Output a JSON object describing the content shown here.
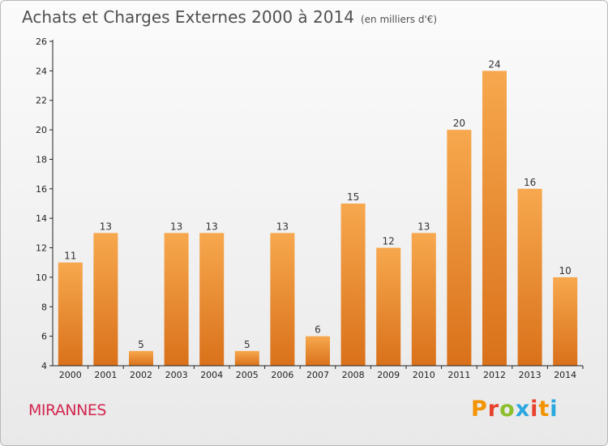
{
  "header": {
    "title": "Achats et Charges Externes 2000 à 2014",
    "subtitle": "(en milliers d'€)"
  },
  "footer": {
    "commune": "MIRANNES",
    "logo_letters": [
      "P",
      "r",
      "o",
      "x",
      "i",
      "t",
      "i"
    ]
  },
  "colors": {
    "bar_light": "#f7a84e",
    "bar_dark": "#d9711a",
    "axis": "#222222",
    "commune": "#d2264f"
  },
  "chart_data": {
    "type": "bar",
    "categories": [
      "2000",
      "2001",
      "2002",
      "2003",
      "2004",
      "2005",
      "2006",
      "2007",
      "2008",
      "2009",
      "2010",
      "2011",
      "2012",
      "2013",
      "2014"
    ],
    "values": [
      11,
      13,
      5,
      13,
      13,
      5,
      13,
      6,
      15,
      12,
      13,
      20,
      24,
      16,
      10
    ],
    "title": "Achats et Charges Externes 2000 à 2014",
    "subtitle": "(en milliers d'€)",
    "xlabel": "",
    "ylabel": "",
    "ylim": [
      4,
      26
    ],
    "yticks": [
      4,
      6,
      8,
      10,
      12,
      14,
      16,
      18,
      20,
      22,
      24,
      26
    ],
    "grid": false,
    "data_labels": true
  }
}
